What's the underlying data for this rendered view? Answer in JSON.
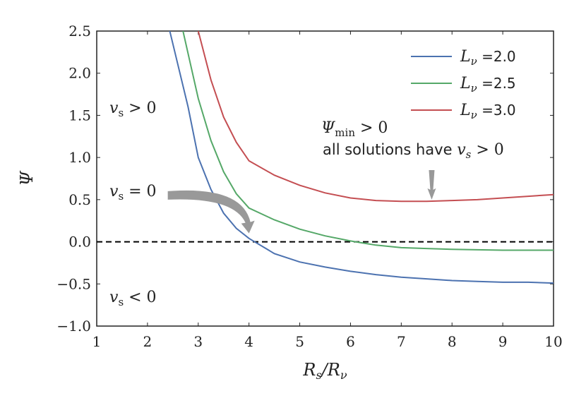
{
  "chart_data": {
    "type": "line",
    "xlabel": "R_s/R_ν",
    "ylabel": "Ψ",
    "xlim": [
      1,
      10
    ],
    "ylim": [
      -1.0,
      2.5
    ],
    "xticks": [
      "1",
      "2",
      "3",
      "4",
      "5",
      "6",
      "7",
      "8",
      "9",
      "10"
    ],
    "yticks": [
      "2.5",
      "2.0",
      "1.5",
      "1.0",
      "0.5",
      "0.0",
      "−0.5",
      "−1.0"
    ],
    "grid": false,
    "legend_position": "top-right",
    "reference_line": {
      "y": 0.0,
      "style": "dashed",
      "color": "#000000"
    },
    "series": [
      {
        "name": "L_ν =2.0",
        "label_var": "L",
        "label_sub": "ν",
        "label_value": "=2.0",
        "color": "#4c72b0",
        "x": [
          2.4,
          2.6,
          2.8,
          3.0,
          3.25,
          3.5,
          3.75,
          4.0,
          4.5,
          5.0,
          5.5,
          6.0,
          6.5,
          7.0,
          7.5,
          8.0,
          8.5,
          9.0,
          9.5,
          10.0
        ],
        "y": [
          2.6,
          2.1,
          1.6,
          1.0,
          0.62,
          0.34,
          0.16,
          0.04,
          -0.14,
          -0.24,
          -0.3,
          -0.35,
          -0.39,
          -0.42,
          -0.44,
          -0.46,
          -0.47,
          -0.48,
          -0.48,
          -0.49
        ]
      },
      {
        "name": "L_ν =2.5",
        "label_var": "L",
        "label_sub": "ν",
        "label_value": "=2.5",
        "color": "#55a868",
        "x": [
          2.7,
          2.85,
          3.0,
          3.25,
          3.5,
          3.75,
          4.0,
          4.5,
          5.0,
          5.5,
          6.0,
          6.5,
          7.0,
          7.5,
          8.0,
          8.5,
          9.0,
          9.5,
          10.0
        ],
        "y": [
          2.5,
          2.1,
          1.7,
          1.2,
          0.83,
          0.57,
          0.4,
          0.26,
          0.15,
          0.07,
          0.01,
          -0.04,
          -0.07,
          -0.08,
          -0.09,
          -0.095,
          -0.1,
          -0.1,
          -0.1
        ]
      },
      {
        "name": "L_ν =3.0",
        "label_var": "L",
        "label_sub": "ν",
        "label_value": "=3.0",
        "color": "#c44e52",
        "x": [
          3.0,
          3.25,
          3.5,
          3.75,
          4.0,
          4.5,
          5.0,
          5.5,
          6.0,
          6.5,
          7.0,
          7.5,
          8.0,
          8.5,
          9.0,
          9.5,
          10.0
        ],
        "y": [
          2.5,
          1.92,
          1.48,
          1.18,
          0.96,
          0.79,
          0.67,
          0.58,
          0.52,
          0.49,
          0.48,
          0.48,
          0.49,
          0.5,
          0.52,
          0.54,
          0.56
        ]
      }
    ],
    "annotations": [
      {
        "id": "vs-positive",
        "text": "v_s > 0",
        "var": "v",
        "sub": "s",
        "rest": " > 0"
      },
      {
        "id": "vs-zero",
        "text": "v_s = 0",
        "var": "v",
        "sub": "s",
        "rest": " = 0"
      },
      {
        "id": "vs-negative",
        "text": "v_s < 0",
        "var": "v",
        "sub": "s",
        "rest": " < 0"
      },
      {
        "id": "psi-min",
        "text": "Ψ_min > 0",
        "var": "Ψ",
        "sub": "min",
        "rest": " > 0"
      },
      {
        "id": "all-solutions",
        "text": "all solutions have v_s > 0",
        "prefix": "all solutions have ",
        "var": "v",
        "sub": "s",
        "rest": " > 0"
      }
    ],
    "arrows": [
      {
        "id": "arrow-vs-zero",
        "color": "#999999",
        "from": [
          2.4,
          0.55
        ],
        "to": [
          4.0,
          0.1
        ]
      },
      {
        "id": "arrow-psi-min",
        "color": "#999999",
        "from": [
          7.6,
          0.85
        ],
        "to": [
          7.6,
          0.5
        ]
      }
    ]
  }
}
